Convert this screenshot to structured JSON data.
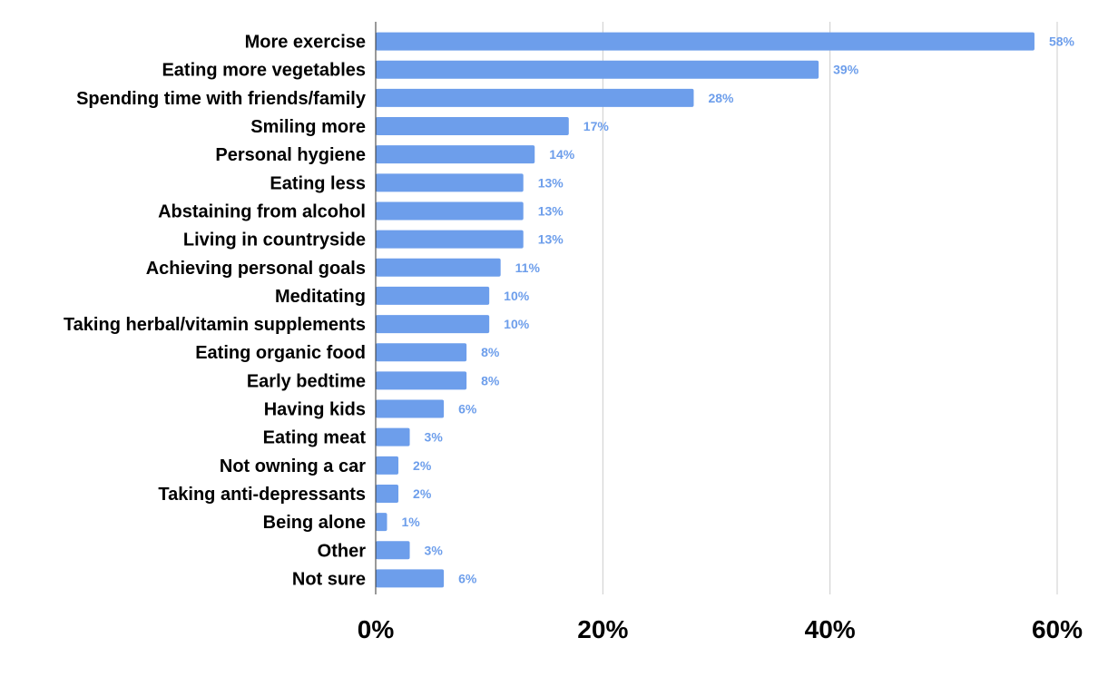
{
  "chart_data": {
    "type": "bar",
    "orientation": "horizontal",
    "categories": [
      "More exercise",
      "Eating more vegetables",
      "Spending time with friends/family",
      "Smiling more",
      "Personal hygiene",
      "Eating less",
      "Abstaining from alcohol",
      "Living in countryside",
      "Achieving personal goals",
      "Meditating",
      "Taking herbal/vitamin supplements",
      "Eating organic food",
      "Early bedtime",
      "Having kids",
      "Eating meat",
      "Not owning a car",
      "Taking anti-depressants",
      "Being alone",
      "Other",
      "Not sure"
    ],
    "values": [
      58,
      39,
      28,
      17,
      14,
      13,
      13,
      13,
      11,
      10,
      10,
      8,
      8,
      6,
      3,
      2,
      2,
      1,
      3,
      6
    ],
    "value_labels": [
      "58%",
      "39%",
      "28%",
      "17%",
      "14%",
      "13%",
      "13%",
      "13%",
      "11%",
      "10%",
      "10%",
      "8%",
      "8%",
      "6%",
      "3%",
      "2%",
      "2%",
      "1%",
      "3%",
      "6%"
    ],
    "xlim": [
      0,
      60
    ],
    "xticks": [
      0,
      20,
      40,
      60
    ],
    "xtick_labels": [
      "0%",
      "20%",
      "40%",
      "60%"
    ],
    "title": "",
    "xlabel": "",
    "ylabel": "",
    "grid": true,
    "legend": "none",
    "colors": {
      "bar": "#6d9eeb",
      "value_label": "#6d9eeb",
      "grid": "#cccccc",
      "axis": "#333333",
      "text": "#000000"
    }
  }
}
